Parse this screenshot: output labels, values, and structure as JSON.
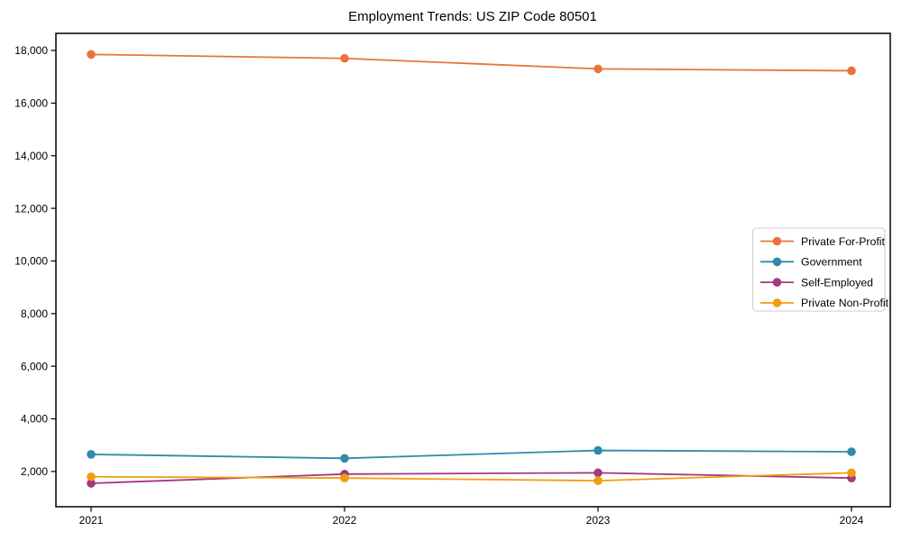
{
  "window": {
    "background": "#ffffff"
  },
  "chart_data": {
    "type": "line",
    "title": "Employment Trends: US ZIP Code 80501",
    "categories": [
      "2021",
      "2022",
      "2023",
      "2024"
    ],
    "series": [
      {
        "name": "Private For-Profit",
        "color": "#e8743b",
        "values": [
          17850,
          17700,
          17300,
          17230
        ]
      },
      {
        "name": "Government",
        "color": "#2e8bab",
        "values": [
          2650,
          2500,
          2800,
          2750
        ]
      },
      {
        "name": "Self-Employed",
        "color": "#a23a7d",
        "values": [
          1550,
          1900,
          1950,
          1750
        ]
      },
      {
        "name": "Private Non-Profit",
        "color": "#f39c12",
        "values": [
          1800,
          1750,
          1650,
          1950
        ]
      }
    ],
    "xlabel": "",
    "ylabel": "",
    "y_ticks": [
      2000,
      4000,
      6000,
      8000,
      10000,
      12000,
      14000,
      16000,
      18000
    ],
    "y_tick_labels": [
      "2,000",
      "4,000",
      "6,000",
      "8,000",
      "10,000",
      "12,000",
      "14,000",
      "16,000",
      "18,000"
    ],
    "ylim": [
      660,
      18650
    ],
    "grid": false,
    "marker": "circle",
    "legend": {
      "position": "center-right",
      "entries": [
        "Private For-Profit",
        "Government",
        "Self-Employed",
        "Private Non-Profit"
      ]
    },
    "frame_color": "#000000",
    "legend_border_color": "#cccccc"
  }
}
